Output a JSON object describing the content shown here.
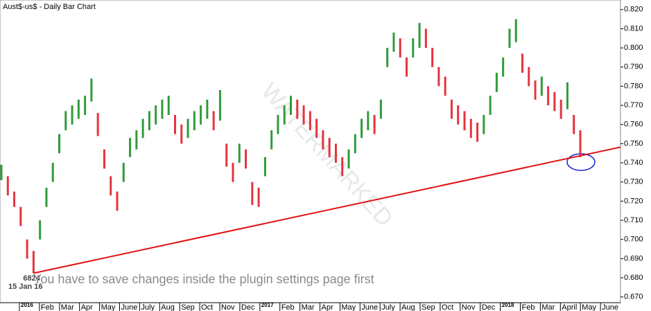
{
  "chart_data": {
    "type": "ohlc",
    "title": "Aust$-us$ - Daily Bar Chart",
    "high": [
      0.739,
      0.733,
      0.725,
      0.717,
      0.7,
      0.694,
      0.71,
      0.727,
      0.74,
      0.755,
      0.767,
      0.77,
      0.773,
      0.775,
      0.784,
      0.766,
      0.747,
      0.733,
      0.725,
      0.74,
      0.753,
      0.757,
      0.763,
      0.767,
      0.77,
      0.773,
      0.775,
      0.765,
      0.76,
      0.763,
      0.767,
      0.77,
      0.773,
      0.767,
      0.778,
      0.75,
      0.74,
      0.75,
      0.747,
      0.73,
      0.727,
      0.743,
      0.757,
      0.765,
      0.77,
      0.775,
      0.773,
      0.77,
      0.767,
      0.763,
      0.757,
      0.753,
      0.75,
      0.743,
      0.747,
      0.755,
      0.763,
      0.767,
      0.765,
      0.773,
      0.8,
      0.808,
      0.805,
      0.795,
      0.805,
      0.813,
      0.81,
      0.8,
      0.79,
      0.785,
      0.773,
      0.77,
      0.767,
      0.763,
      0.761,
      0.765,
      0.775,
      0.787,
      0.795,
      0.81,
      0.815,
      0.797,
      0.79,
      0.783,
      0.785,
      0.78,
      0.777,
      0.773,
      0.782,
      0.765,
      0.757
    ],
    "low": [
      0.731,
      0.723,
      0.717,
      0.707,
      0.69,
      0.6824,
      0.7,
      0.717,
      0.73,
      0.745,
      0.757,
      0.76,
      0.763,
      0.765,
      0.772,
      0.754,
      0.737,
      0.723,
      0.715,
      0.73,
      0.743,
      0.747,
      0.753,
      0.757,
      0.76,
      0.763,
      0.765,
      0.755,
      0.75,
      0.753,
      0.757,
      0.76,
      0.763,
      0.757,
      0.762,
      0.738,
      0.73,
      0.74,
      0.737,
      0.718,
      0.717,
      0.733,
      0.747,
      0.755,
      0.76,
      0.765,
      0.763,
      0.76,
      0.757,
      0.753,
      0.747,
      0.743,
      0.74,
      0.733,
      0.737,
      0.745,
      0.753,
      0.757,
      0.755,
      0.763,
      0.79,
      0.798,
      0.795,
      0.785,
      0.795,
      0.8,
      0.8,
      0.79,
      0.78,
      0.775,
      0.763,
      0.76,
      0.757,
      0.753,
      0.751,
      0.755,
      0.765,
      0.777,
      0.785,
      0.8,
      0.803,
      0.787,
      0.78,
      0.773,
      0.775,
      0.77,
      0.767,
      0.763,
      0.768,
      0.755,
      0.743
    ],
    "up_color": "#2e9b3a",
    "down_color": "#e5323f",
    "ylim": [
      0.667,
      0.825
    ],
    "yticks": [
      {
        "value": 0.67,
        "label": "0.670"
      },
      {
        "value": 0.68,
        "label": "0.680"
      },
      {
        "value": 0.69,
        "label": "0.690"
      },
      {
        "value": 0.7,
        "label": "0.700"
      },
      {
        "value": 0.71,
        "label": "0.710"
      },
      {
        "value": 0.72,
        "label": "0.720"
      },
      {
        "value": 0.73,
        "label": "0.730"
      },
      {
        "value": 0.74,
        "label": "0.740"
      },
      {
        "value": 0.75,
        "label": "0.750"
      },
      {
        "value": 0.76,
        "label": "0.760"
      },
      {
        "value": 0.77,
        "label": "0.770"
      },
      {
        "value": 0.78,
        "label": "0.780"
      },
      {
        "value": 0.79,
        "label": "0.790"
      },
      {
        "value": 0.8,
        "label": "0.800"
      },
      {
        "value": 0.81,
        "label": "0.810"
      },
      {
        "value": 0.82,
        "label": "0.820"
      }
    ],
    "xticks": [
      "2016",
      "Feb",
      "Mar",
      "Apr",
      "May",
      "June",
      "July",
      "Aug",
      "Sep",
      "Oct",
      "Nov",
      "Dec",
      "2017",
      "Feb",
      "Mar",
      "Apr",
      "May",
      "June",
      "July",
      "Aug",
      "Sep",
      "Oct",
      "Nov",
      "Dec",
      "2018",
      "Feb",
      "Mar",
      "April",
      "May",
      "June"
    ],
    "trendline": {
      "start": 0.6824,
      "end": 0.7482,
      "color": "#e01010"
    },
    "low_label": "6824",
    "low_date": "15 Jan 16",
    "watermark": "WATERMARKED",
    "notice": "You have to save changes inside the plugin settings page first"
  }
}
